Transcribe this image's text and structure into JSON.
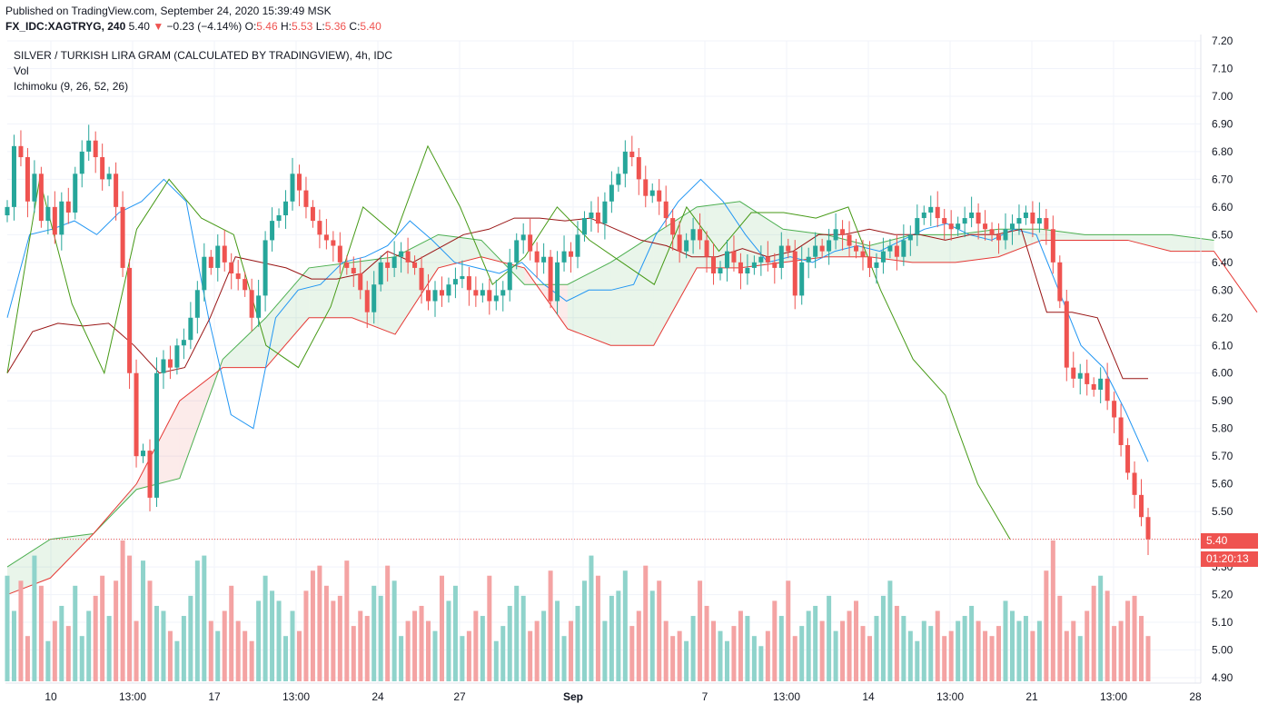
{
  "header": {
    "published": "Published on TradingView.com, September 24, 2020 15:39:49 MSK",
    "symbol": "FX_IDC:XAGTRYG, 240",
    "last": "5.40",
    "arrow": "▼",
    "change": "−0.23 (−4.14%)",
    "o_label": "O:",
    "o": "5.46",
    "h_label": "H:",
    "h": "5.53",
    "l_label": "L:",
    "l": "5.36",
    "c_label": "C:",
    "c": "5.40"
  },
  "legend": {
    "title": "SILVER / TURKISH LIRA GRAM (CALCULATED BY TRADINGVIEW), 4h, IDC",
    "vol": "Vol",
    "ichimoku": "Ichimoku (9, 26, 52, 26)"
  },
  "price_tags": {
    "last_price": "5.40",
    "countdown": "01:20:13"
  },
  "colors": {
    "up": "#26a69a",
    "down": "#ef5350",
    "vol_up": "#8fd3cb",
    "vol_down": "#f4a3a3",
    "conversion": "#2196f3",
    "base": "#991515",
    "lagging": "#459915",
    "lead_a": "#4caf50",
    "lead_b": "#e53935"
  },
  "chart_data": {
    "type": "candlestick",
    "y_ticks": [
      "7.20",
      "7.10",
      "7.00",
      "6.90",
      "6.80",
      "6.70",
      "6.60",
      "6.50",
      "6.40",
      "6.30",
      "6.20",
      "6.10",
      "6.00",
      "5.90",
      "5.80",
      "5.70",
      "5.60",
      "5.50",
      "5.40",
      "5.30",
      "5.20",
      "5.10",
      "5.00",
      "4.90"
    ],
    "x_ticks": [
      "10",
      "13:00",
      "17",
      "13:00",
      "24",
      "27",
      "Sep",
      "7",
      "13:00",
      "14",
      "13:00",
      "21",
      "13:00",
      "28"
    ],
    "ylim": [
      4.9,
      7.2
    ],
    "close_series": [
      6.6,
      6.82,
      6.78,
      6.62,
      6.72,
      6.55,
      6.6,
      6.5,
      6.62,
      6.58,
      6.72,
      6.8,
      6.84,
      6.78,
      6.7,
      6.72,
      6.6,
      6.38,
      6.0,
      5.7,
      5.72,
      5.55,
      6.0,
      6.05,
      6.02,
      6.1,
      6.12,
      6.2,
      6.3,
      6.42,
      6.38,
      6.46,
      6.4,
      6.36,
      6.34,
      6.3,
      6.2,
      6.28,
      6.48,
      6.55,
      6.57,
      6.62,
      6.72,
      6.66,
      6.6,
      6.55,
      6.5,
      6.48,
      6.46,
      6.4,
      6.38,
      6.36,
      6.3,
      6.22,
      6.32,
      6.4,
      6.38,
      6.42,
      6.44,
      6.4,
      6.38,
      6.3,
      6.26,
      6.3,
      6.28,
      6.32,
      6.34,
      6.35,
      6.3,
      6.28,
      6.3,
      6.26,
      6.28,
      6.3,
      6.4,
      6.48,
      6.5,
      6.44,
      6.4,
      6.42,
      6.26,
      6.4,
      6.44,
      6.42,
      6.5,
      6.56,
      6.58,
      6.54,
      6.62,
      6.68,
      6.72,
      6.8,
      6.78,
      6.7,
      6.64,
      6.66,
      6.62,
      6.56,
      6.5,
      6.44,
      6.48,
      6.52,
      6.48,
      6.42,
      6.36,
      6.38,
      6.44,
      6.4,
      6.36,
      6.38,
      6.4,
      6.42,
      6.4,
      6.38,
      6.46,
      6.44,
      6.28,
      6.4,
      6.42,
      6.46,
      6.44,
      6.48,
      6.52,
      6.5,
      6.46,
      6.44,
      6.42,
      6.38,
      6.4,
      6.44,
      6.46,
      6.42,
      6.48,
      6.5,
      6.56,
      6.58,
      6.6,
      6.56,
      6.54,
      6.52,
      6.54,
      6.56,
      6.58,
      6.54,
      6.52,
      6.5,
      6.48,
      6.52,
      6.54,
      6.56,
      6.58,
      6.54,
      6.56,
      6.52,
      6.4,
      6.26,
      6.02,
      5.98,
      6.0,
      5.96,
      5.94,
      5.98,
      5.9,
      5.84,
      5.74,
      5.64,
      5.56,
      5.48,
      5.4
    ],
    "volume_series": [
      21,
      14,
      20,
      9,
      25,
      19,
      8,
      12,
      15,
      11,
      19,
      9,
      14,
      17,
      21,
      13,
      20,
      28,
      25,
      12,
      24,
      20,
      15,
      14,
      10,
      8,
      13,
      17,
      24,
      25,
      12,
      10,
      14,
      19,
      12,
      10,
      8,
      16,
      21,
      18,
      16,
      9,
      14,
      10,
      18,
      22,
      23,
      19,
      16,
      17,
      24,
      11,
      14,
      13,
      19,
      17,
      23,
      20,
      9,
      12,
      14,
      15,
      12,
      10,
      21,
      16,
      19,
      9,
      10,
      14,
      13,
      21,
      8,
      11,
      15,
      19,
      17,
      10,
      12,
      14,
      22,
      16,
      9,
      12,
      15,
      20,
      25,
      21,
      12,
      17,
      18,
      22,
      11,
      14,
      23,
      18,
      20,
      12,
      9,
      10,
      8,
      13,
      20,
      15,
      12,
      10,
      8,
      11,
      14,
      13,
      9,
      7,
      10,
      16,
      13,
      20,
      9,
      11,
      14,
      15,
      12,
      17,
      10,
      12,
      14,
      16,
      11,
      9,
      13,
      17,
      20,
      15,
      13,
      10,
      8,
      12,
      11,
      14,
      9,
      10,
      12,
      13,
      15,
      12,
      10,
      9,
      11,
      16,
      14,
      12,
      13,
      10,
      12,
      22,
      28,
      17,
      10,
      12,
      9,
      14,
      19,
      21,
      18,
      11,
      12,
      16,
      17,
      13,
      9
    ],
    "ichimoku": {
      "conversion": [
        6.2,
        6.5,
        6.52,
        6.55,
        6.5,
        6.58,
        6.62,
        6.7,
        6.62,
        6.2,
        5.85,
        5.8,
        6.2,
        6.3,
        6.32,
        6.4,
        6.42,
        6.46,
        6.55,
        6.48,
        6.4,
        6.38,
        6.36,
        6.4,
        6.32,
        6.26,
        6.3,
        6.3,
        6.32,
        6.5,
        6.62,
        6.7,
        6.62,
        6.5,
        6.4,
        6.42,
        6.4,
        6.44,
        6.46,
        6.44,
        6.48,
        6.52,
        6.54,
        6.5,
        6.48,
        6.52,
        6.5,
        6.3,
        6.1,
        6.02,
        5.86,
        5.68
      ],
      "base": [
        6.0,
        6.15,
        6.18,
        6.17,
        6.18,
        6.1,
        6.0,
        6.02,
        6.2,
        6.42,
        6.4,
        6.38,
        6.34,
        6.34,
        6.36,
        6.44,
        6.4,
        6.45,
        6.5,
        6.52,
        6.56,
        6.56,
        6.55,
        6.56,
        6.52,
        6.48,
        6.46,
        6.42,
        6.42,
        6.45,
        6.42,
        6.44,
        6.5,
        6.5,
        6.52,
        6.5,
        6.5,
        6.48,
        6.5,
        6.5,
        6.52,
        6.22,
        6.22,
        6.2,
        5.98,
        5.98
      ],
      "lagging": [
        6.0,
        6.7,
        6.25,
        6.0,
        6.52,
        6.7,
        6.56,
        6.5,
        6.1,
        6.02,
        6.24,
        6.6,
        6.5,
        6.82,
        6.6,
        6.32,
        6.42,
        6.6,
        6.48,
        6.4,
        6.32,
        6.6,
        6.44,
        6.58,
        6.58,
        6.56,
        6.6,
        6.3,
        6.05,
        5.92,
        5.6,
        5.4
      ],
      "lead_a": [
        5.3,
        5.4,
        5.42,
        5.58,
        5.62,
        6.05,
        6.2,
        6.38,
        6.4,
        6.42,
        6.5,
        6.48,
        6.32,
        6.32,
        6.4,
        6.5,
        6.6,
        6.62,
        6.52,
        6.5,
        6.46,
        6.5,
        6.5,
        6.52,
        6.52,
        6.5,
        6.5,
        6.5,
        6.48
      ],
      "lead_b": [
        5.2,
        5.26,
        5.42,
        5.6,
        5.9,
        6.02,
        6.02,
        6.2,
        6.2,
        6.14,
        6.38,
        6.42,
        6.38,
        6.16,
        6.1,
        6.1,
        6.38,
        6.38,
        6.4,
        6.42,
        6.42,
        6.4,
        6.4,
        6.42,
        6.48,
        6.48,
        6.48,
        6.44,
        6.44,
        6.22
      ]
    }
  }
}
